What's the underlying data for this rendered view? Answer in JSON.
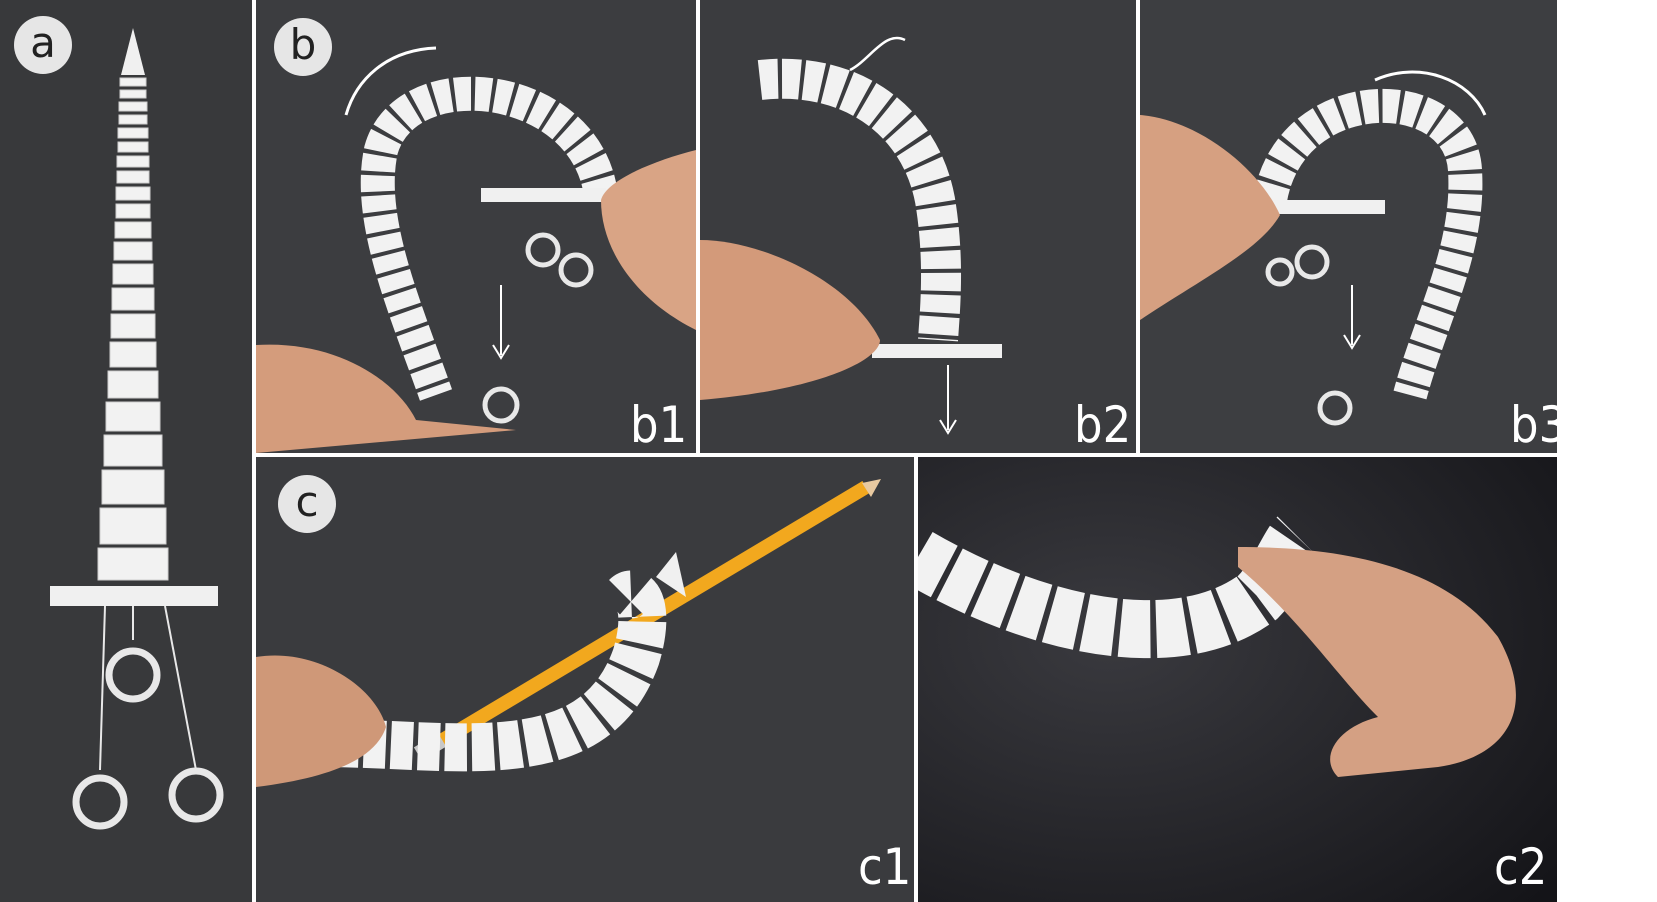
{
  "figure": {
    "panels": [
      {
        "id": "a",
        "label": "a"
      },
      {
        "id": "b",
        "label": "b",
        "subpanels": [
          "b1",
          "b2",
          "b3"
        ]
      },
      {
        "id": "c",
        "label": "c",
        "subpanels": [
          "c1",
          "c2"
        ]
      }
    ]
  },
  "labels": {
    "a": "a",
    "b": "b",
    "c": "c",
    "b1": "b1",
    "b2": "b2",
    "b3": "b3",
    "c1": "c1",
    "c2": "c2"
  },
  "colors": {
    "background": "#3a3a3c",
    "background_dark": "#222226",
    "vertebra": "#f2f2f2",
    "skin": "#d7a080",
    "pencil": "#f2a81e",
    "separator": "#ffffff"
  }
}
